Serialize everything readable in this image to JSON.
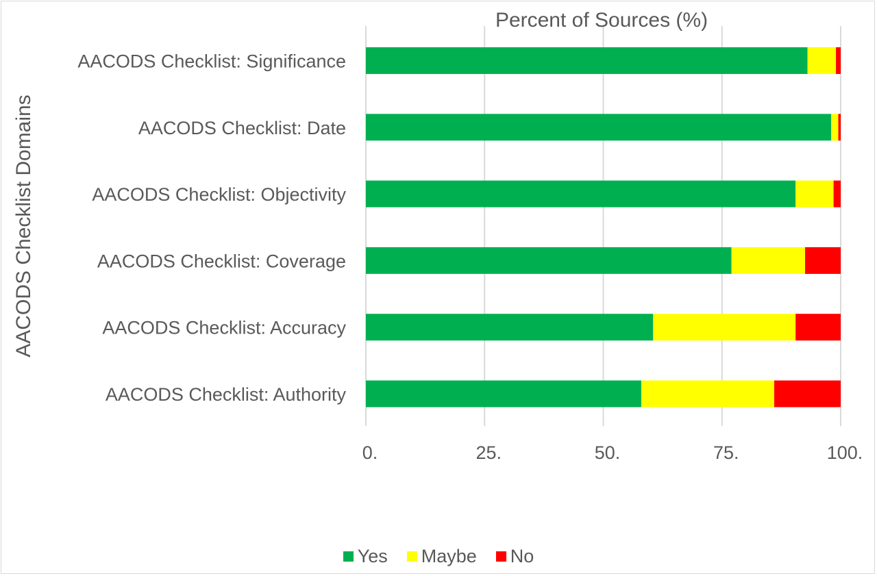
{
  "chart_data": {
    "type": "bar",
    "orientation": "horizontal",
    "stacked": true,
    "title": "Percent of Sources (%)",
    "ylabel": "AACODS Checklist Domains",
    "xlabel": "",
    "categories": [
      "AACODS Checklist: Significance",
      "AACODS Checklist: Date",
      "AACODS Checklist: Objectivity",
      "AACODS Checklist: Coverage",
      "AACODS Checklist: Accuracy ",
      "AACODS Checklist: Authority"
    ],
    "series": [
      {
        "name": "Yes",
        "color": "#00b050",
        "values": [
          93,
          98,
          90.5,
          77,
          60.5,
          58
        ]
      },
      {
        "name": "Maybe",
        "color": "#ffff00",
        "values": [
          6,
          1.5,
          8,
          15.5,
          30,
          28
        ]
      },
      {
        "name": "No",
        "color": "#ff0000",
        "values": [
          1,
          0.5,
          1.5,
          7.5,
          9.5,
          14
        ]
      }
    ],
    "xlim": [
      0,
      100
    ],
    "xticks": [
      0,
      25,
      50,
      75,
      100
    ],
    "xtick_labels": [
      "0.",
      "25.",
      "50.",
      "75.",
      "100."
    ],
    "grid": true,
    "legend_position": "bottom"
  }
}
